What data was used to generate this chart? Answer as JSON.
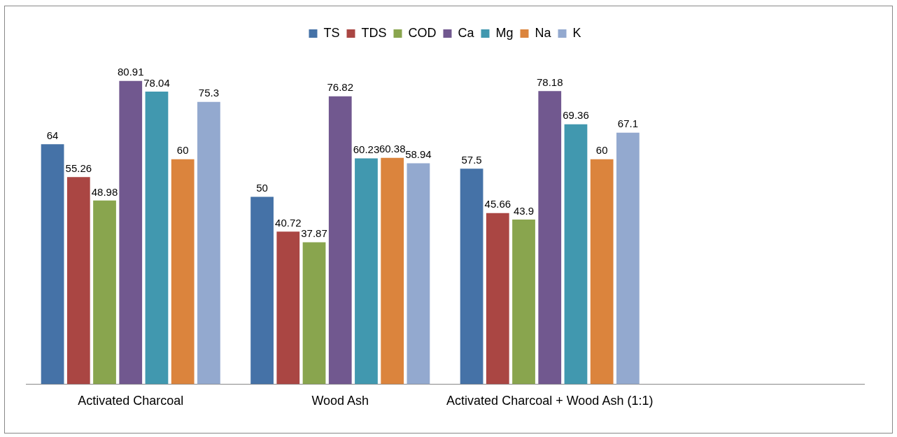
{
  "chart_data": {
    "type": "bar",
    "categories": [
      "Activated Charcoal",
      "Wood Ash",
      "Activated Charcoal + Wood Ash (1:1)",
      null
    ],
    "series": [
      {
        "name": "TS",
        "color": "#4572a7",
        "values": [
          64,
          50,
          57.5,
          null
        ]
      },
      {
        "name": "TDS",
        "color": "#aa4643",
        "values": [
          55.26,
          40.72,
          45.66,
          null
        ]
      },
      {
        "name": "COD",
        "color": "#89a54e",
        "values": [
          48.98,
          37.87,
          43.9,
          null
        ]
      },
      {
        "name": "Ca",
        "color": "#71588f",
        "values": [
          80.91,
          76.82,
          78.18,
          null
        ]
      },
      {
        "name": "Mg",
        "color": "#4198af",
        "values": [
          78.04,
          60.23,
          69.36,
          null
        ]
      },
      {
        "name": "Na",
        "color": "#db843d",
        "values": [
          60,
          60.38,
          60,
          null
        ]
      },
      {
        "name": "K",
        "color": "#93a9cf",
        "values": [
          75.3,
          58.94,
          67.1,
          null
        ]
      }
    ],
    "data_labels": true,
    "legend": "top",
    "grid": false
  }
}
